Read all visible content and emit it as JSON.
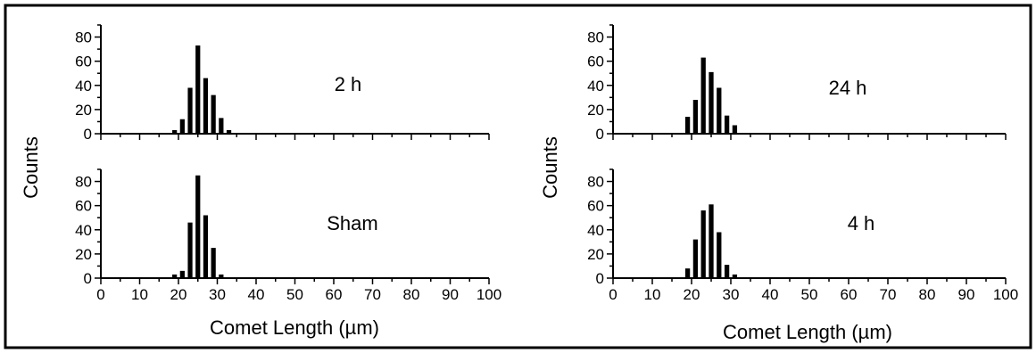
{
  "figure": {
    "ylabel": "Counts",
    "xlabel": "Comet Length (µm)",
    "border_color": "#000000"
  },
  "chart_data": [
    {
      "type": "bar",
      "title": "2 h",
      "xlim": [
        0,
        100
      ],
      "ylim": [
        0,
        90
      ],
      "yticks": [
        0,
        20,
        40,
        60,
        80
      ],
      "xticks": [],
      "bin_width": 2,
      "x": [
        18,
        20,
        22,
        24,
        26,
        28,
        30,
        32
      ],
      "values": [
        3,
        12,
        38,
        73,
        46,
        32,
        13,
        3
      ]
    },
    {
      "type": "bar",
      "title": "Sham",
      "xlim": [
        0,
        100
      ],
      "ylim": [
        0,
        90
      ],
      "yticks": [
        0,
        20,
        40,
        60,
        80
      ],
      "xticks": [
        0,
        10,
        20,
        30,
        40,
        50,
        60,
        70,
        80,
        90,
        100
      ],
      "bin_width": 2,
      "x": [
        18,
        20,
        22,
        24,
        26,
        28,
        30
      ],
      "values": [
        3,
        6,
        46,
        85,
        52,
        25,
        3
      ]
    },
    {
      "type": "bar",
      "title": "24 h",
      "xlim": [
        0,
        100
      ],
      "ylim": [
        0,
        90
      ],
      "yticks": [
        0,
        20,
        40,
        60,
        80
      ],
      "xticks": [],
      "bin_width": 2,
      "x": [
        18,
        20,
        22,
        24,
        26,
        28,
        30
      ],
      "values": [
        14,
        28,
        63,
        51,
        38,
        15,
        7
      ]
    },
    {
      "type": "bar",
      "title": "4 h",
      "xlim": [
        0,
        100
      ],
      "ylim": [
        0,
        90
      ],
      "yticks": [
        0,
        20,
        40,
        60,
        80
      ],
      "xticks": [
        0,
        10,
        20,
        30,
        40,
        50,
        60,
        70,
        80,
        90,
        100
      ],
      "bin_width": 2,
      "x": [
        18,
        20,
        22,
        24,
        26,
        28,
        30
      ],
      "values": [
        8,
        32,
        56,
        61,
        38,
        11,
        3
      ]
    }
  ]
}
